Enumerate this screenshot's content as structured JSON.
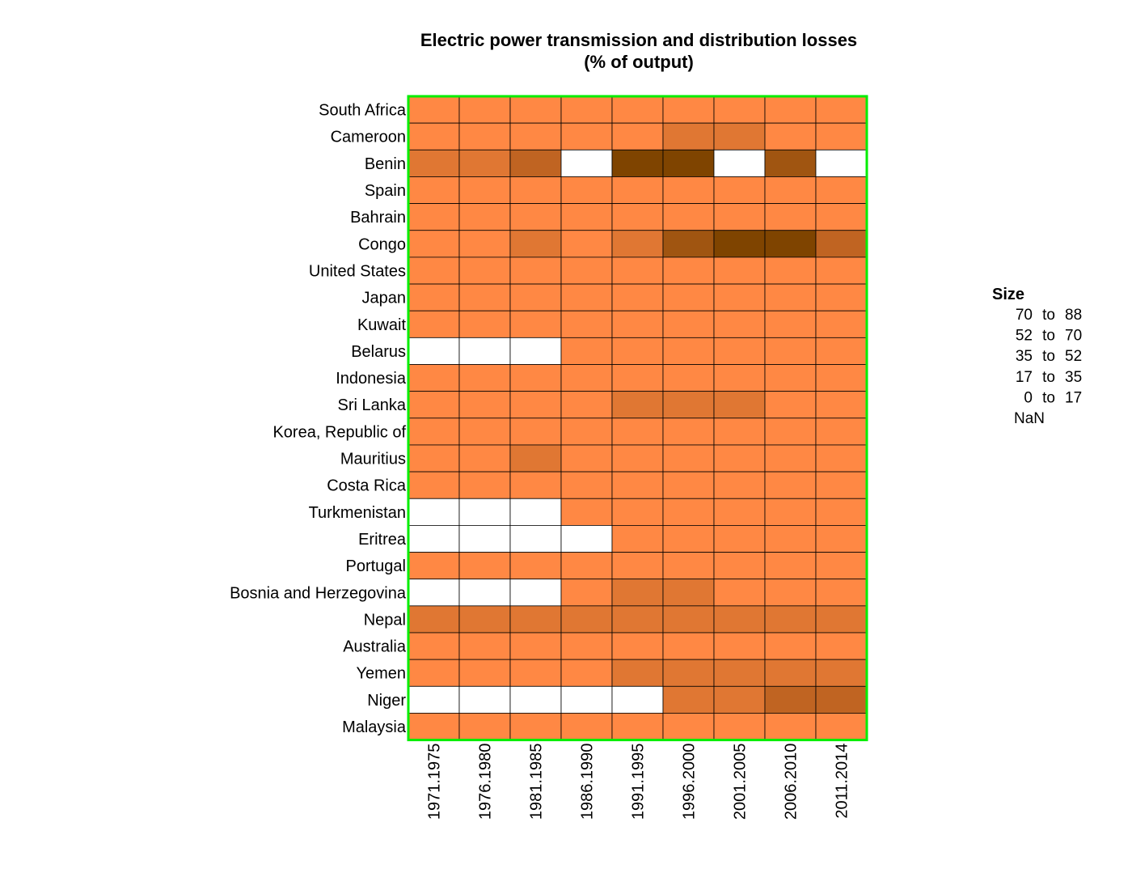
{
  "chart_data": {
    "type": "heatmap",
    "title": "Electric power transmission and distribution losses",
    "subtitle": "(% of output)",
    "rows": [
      "South Africa",
      "Cameroon",
      "Benin",
      "Spain",
      "Bahrain",
      "Congo",
      "United States",
      "Japan",
      "Kuwait",
      "Belarus",
      "Indonesia",
      "Sri Lanka",
      "Korea, Republic of",
      "Mauritius",
      "Costa Rica",
      "Turkmenistan",
      "Eritrea",
      "Portugal",
      "Bosnia and Herzegovina",
      "Nepal",
      "Australia",
      "Yemen",
      "Niger",
      "Malaysia"
    ],
    "columns": [
      "1971.1975",
      "1976.1980",
      "1981.1985",
      "1986.1990",
      "1991.1995",
      "1996.2000",
      "2001.2005",
      "2006.2010",
      "2011.2014"
    ],
    "bin_labels": [
      "0 to 17",
      "17 to 35",
      "35 to 52",
      "52 to 70",
      "70 to 88",
      "NaN"
    ],
    "bin_colors": [
      "#FF8844",
      "#E07733",
      "#C06422",
      "#A05511",
      "#7F4400",
      "#FFFFFF"
    ],
    "bins": [
      [
        0,
        0,
        0,
        0,
        0,
        0,
        0,
        0,
        0
      ],
      [
        0,
        0,
        0,
        0,
        0,
        1,
        1,
        0,
        0
      ],
      [
        1,
        1,
        2,
        5,
        4,
        4,
        5,
        3,
        5
      ],
      [
        0,
        0,
        0,
        0,
        0,
        0,
        0,
        0,
        0
      ],
      [
        0,
        0,
        0,
        0,
        0,
        0,
        0,
        0,
        0
      ],
      [
        0,
        0,
        1,
        0,
        1,
        3,
        4,
        4,
        2
      ],
      [
        0,
        0,
        0,
        0,
        0,
        0,
        0,
        0,
        0
      ],
      [
        0,
        0,
        0,
        0,
        0,
        0,
        0,
        0,
        0
      ],
      [
        0,
        0,
        0,
        0,
        0,
        0,
        0,
        0,
        0
      ],
      [
        5,
        5,
        5,
        0,
        0,
        0,
        0,
        0,
        0
      ],
      [
        0,
        0,
        0,
        0,
        0,
        0,
        0,
        0,
        0
      ],
      [
        0,
        0,
        0,
        0,
        1,
        1,
        1,
        0,
        0
      ],
      [
        0,
        0,
        0,
        0,
        0,
        0,
        0,
        0,
        0
      ],
      [
        0,
        0,
        1,
        0,
        0,
        0,
        0,
        0,
        0
      ],
      [
        0,
        0,
        0,
        0,
        0,
        0,
        0,
        0,
        0
      ],
      [
        5,
        5,
        5,
        0,
        0,
        0,
        0,
        0,
        0
      ],
      [
        5,
        5,
        5,
        5,
        0,
        0,
        0,
        0,
        0
      ],
      [
        0,
        0,
        0,
        0,
        0,
        0,
        0,
        0,
        0
      ],
      [
        5,
        5,
        5,
        0,
        1,
        1,
        0,
        0,
        0
      ],
      [
        1,
        1,
        1,
        1,
        1,
        1,
        1,
        1,
        1
      ],
      [
        0,
        0,
        0,
        0,
        0,
        0,
        0,
        0,
        0
      ],
      [
        0,
        0,
        0,
        0,
        1,
        1,
        1,
        1,
        1
      ],
      [
        5,
        5,
        5,
        5,
        5,
        1,
        1,
        2,
        2
      ],
      [
        0,
        0,
        0,
        0,
        0,
        0,
        0,
        0,
        0
      ]
    ],
    "frame_color": "#00EE00",
    "legend": {
      "title": "Size",
      "position": "right",
      "entries": [
        {
          "lo": "70",
          "to": "to",
          "hi": "88"
        },
        {
          "lo": "52",
          "to": "to",
          "hi": "70"
        },
        {
          "lo": "35",
          "to": "to",
          "hi": "52"
        },
        {
          "lo": "17",
          "to": "to",
          "hi": "35"
        },
        {
          "lo": "0",
          "to": "to",
          "hi": "17"
        },
        {
          "lo": "NaN",
          "to": "",
          "hi": ""
        }
      ]
    }
  }
}
